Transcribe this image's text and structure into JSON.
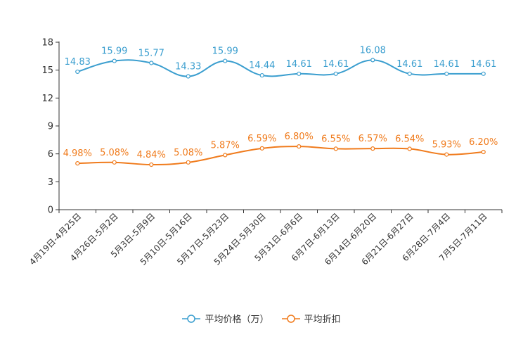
{
  "chart_data": {
    "type": "line",
    "title": "",
    "xlabel": "",
    "ylabel": "",
    "ylim": [
      0,
      18
    ],
    "yticks": [
      0,
      3,
      6,
      9,
      12,
      15,
      18
    ],
    "grid": false,
    "legend_position": "bottom-center",
    "categories": [
      "4月19日-4月25日",
      "4月26日-5月2日",
      "5月3日-5月9日",
      "5月10日-5月16日",
      "5月17日-5月23日",
      "5月24日-5月30日",
      "5月31日-6月6日",
      "6月7日-6月13日",
      "6月14日-6月20日",
      "6月21日-6月27日",
      "6月28日-7月4日",
      "7月5日-7月11日"
    ],
    "series": [
      {
        "name": "平均价格（万）",
        "color": "#3a9ecf",
        "values": [
          14.83,
          15.99,
          15.77,
          14.33,
          15.99,
          14.44,
          14.61,
          14.61,
          16.08,
          14.61,
          14.61,
          14.61
        ],
        "labels": [
          "14.83",
          "15.99",
          "15.77",
          "14.33",
          "15.99",
          "14.44",
          "14.61",
          "14.61",
          "16.08",
          "14.61",
          "14.61",
          "14.61"
        ]
      },
      {
        "name": "平均折扣",
        "color": "#f07b1c",
        "values": [
          4.98,
          5.08,
          4.84,
          5.08,
          5.87,
          6.59,
          6.8,
          6.55,
          6.57,
          6.54,
          5.93,
          6.2
        ],
        "labels": [
          "4.98%",
          "5.08%",
          "4.84%",
          "5.08%",
          "5.87%",
          "6.59%",
          "6.80%",
          "6.55%",
          "6.57%",
          "6.54%",
          "5.93%",
          "6.20%"
        ]
      }
    ]
  },
  "legend": {
    "price_label": "平均价格（万）",
    "discount_label": "平均折扣"
  }
}
